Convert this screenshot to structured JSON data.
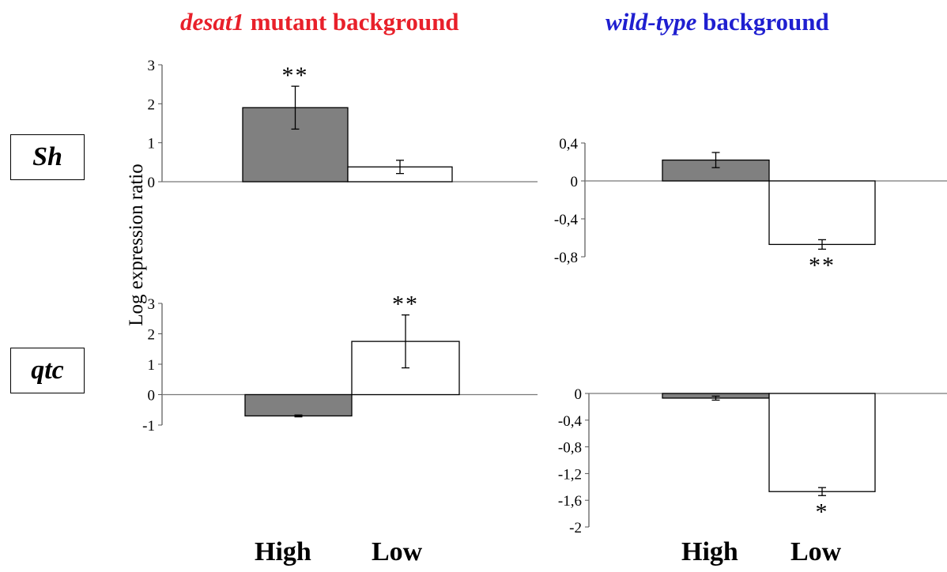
{
  "titles": {
    "left": {
      "italic": "desat1",
      "rest": " mutant background",
      "color": "#e8202a"
    },
    "right": {
      "italic": "wild-type",
      "rest": " background",
      "color": "#1f1fd0"
    }
  },
  "rows": {
    "top": "Sh",
    "bottom": "qtc"
  },
  "ylabel": "Log expression ratio",
  "xcategories": [
    "High",
    "Low"
  ],
  "colors": {
    "high_fill": "#808080",
    "low_fill": "#ffffff",
    "stroke": "#000000"
  },
  "chart_data": [
    {
      "type": "bar",
      "panel": "Sh / desat1 mutant background",
      "categories": [
        "High",
        "Low"
      ],
      "series": [
        {
          "values": [
            1.9,
            0.38
          ],
          "errors": [
            0.55,
            0.17
          ]
        }
      ],
      "significance": [
        "**",
        ""
      ],
      "ylim": [
        0,
        3
      ],
      "yticks": [
        "0",
        "1",
        "2",
        "3"
      ]
    },
    {
      "type": "bar",
      "panel": "Sh / wild-type background",
      "categories": [
        "High",
        "Low"
      ],
      "series": [
        {
          "values": [
            0.22,
            -0.67
          ],
          "errors": [
            0.08,
            0.05
          ]
        }
      ],
      "significance": [
        "",
        "**"
      ],
      "ylim": [
        -0.8,
        0.4
      ],
      "yticks": [
        "0,4",
        "0",
        "-0,4",
        "-0,8"
      ]
    },
    {
      "type": "bar",
      "panel": "qtc / desat1 mutant background",
      "categories": [
        "High",
        "Low"
      ],
      "series": [
        {
          "values": [
            -0.7,
            1.75
          ],
          "errors": [
            0.03,
            0.87
          ]
        }
      ],
      "significance": [
        "",
        "**"
      ],
      "ylim": [
        -1,
        3
      ],
      "yticks": [
        "3",
        "2",
        "1",
        "0",
        "-1"
      ]
    },
    {
      "type": "bar",
      "panel": "qtc / wild-type background",
      "categories": [
        "High",
        "Low"
      ],
      "series": [
        {
          "values": [
            -0.07,
            -1.47
          ],
          "errors": [
            0.03,
            0.06
          ]
        }
      ],
      "significance": [
        "",
        "*"
      ],
      "ylim": [
        -2,
        0
      ],
      "yticks": [
        "0",
        "-0,4",
        "-0,8",
        "-1,2",
        "-1,6",
        "-2"
      ]
    }
  ]
}
